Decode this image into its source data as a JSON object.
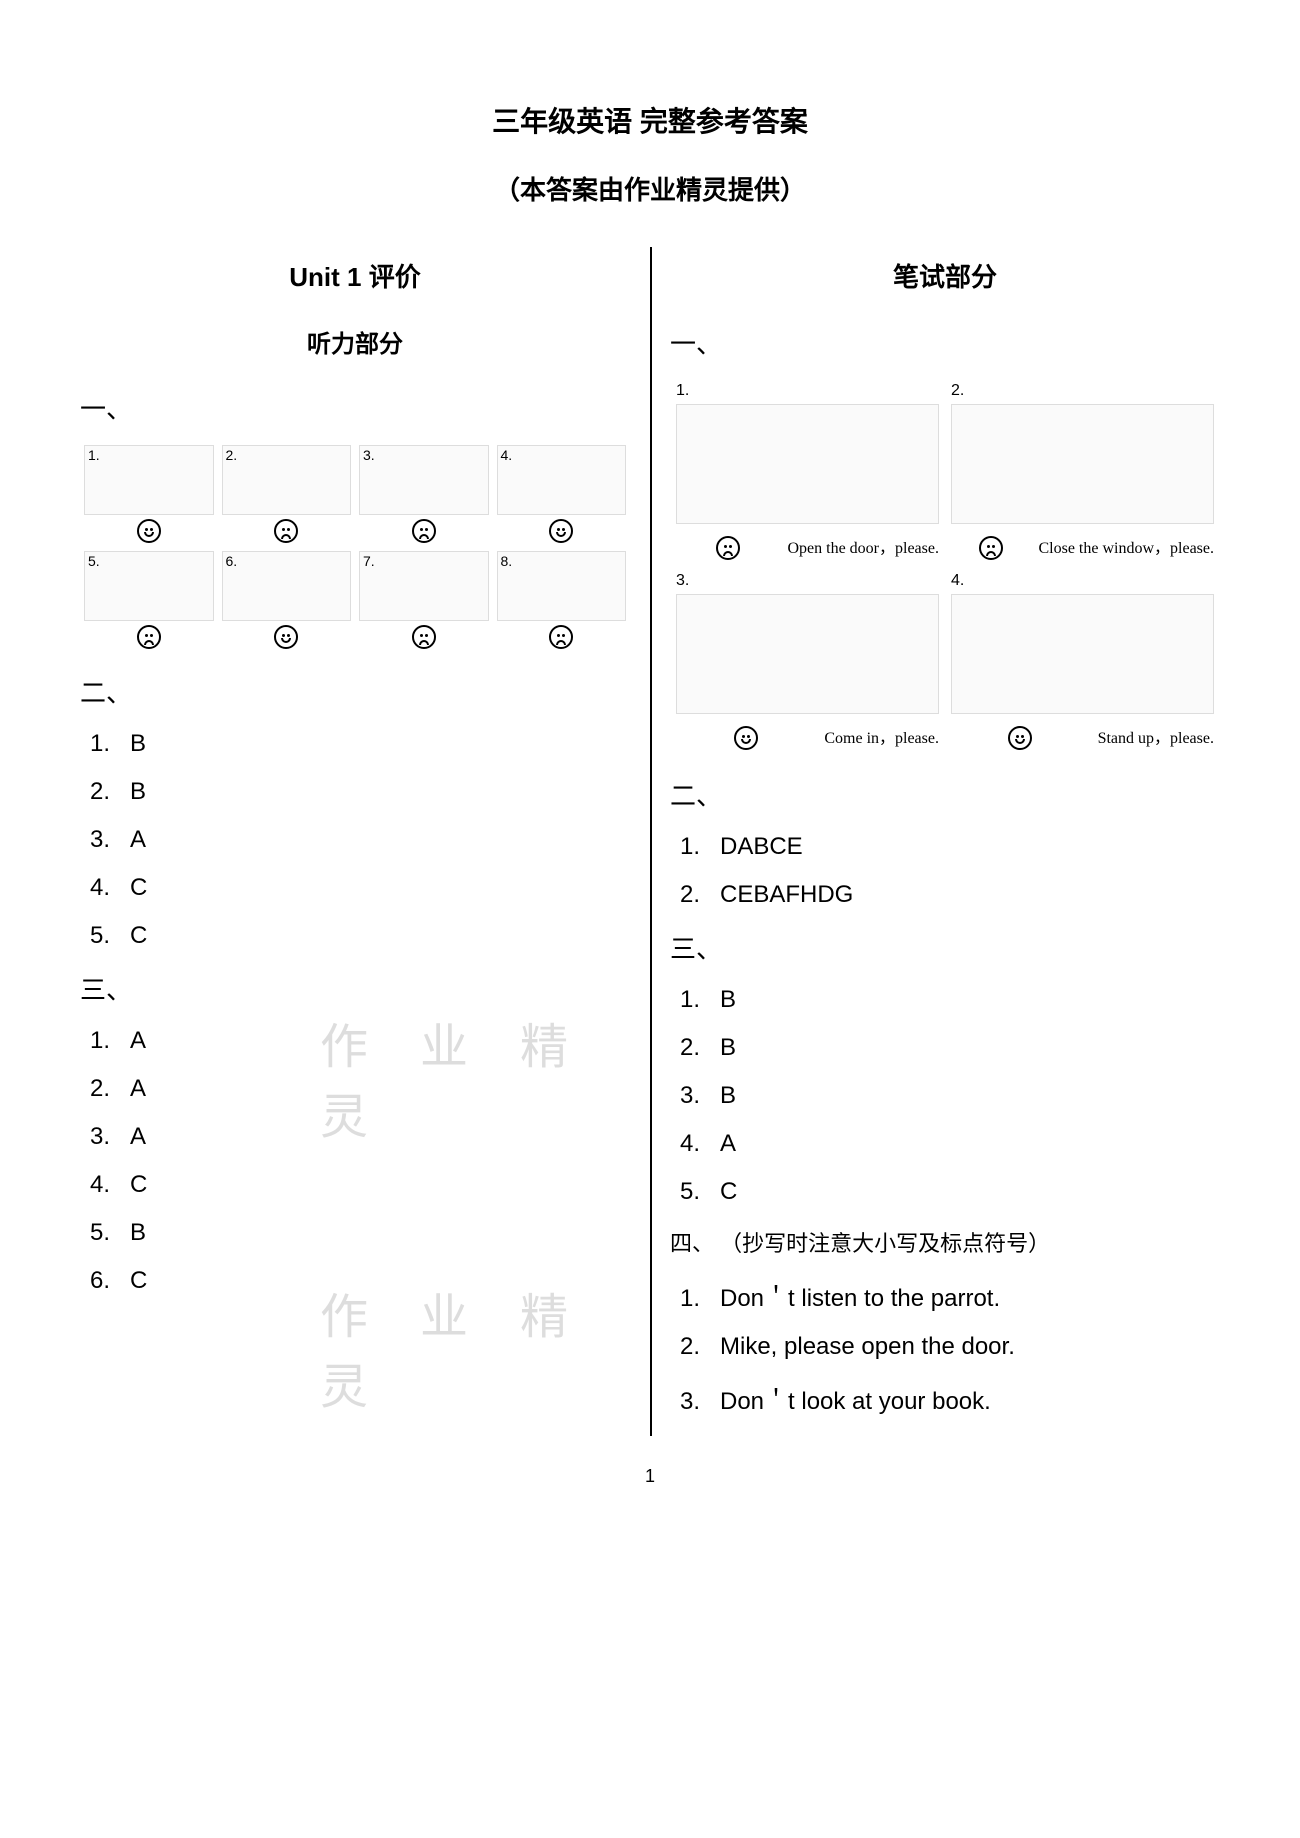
{
  "header": {
    "title": "三年级英语  完整参考答案",
    "subtitle": "（本答案由作业精灵提供）"
  },
  "watermark": "作 业 精 灵",
  "page_number": "1",
  "left": {
    "unit_heading": "Unit 1  评价",
    "listening_heading": "听力部分",
    "part1_label": "一、",
    "grid": [
      {
        "idx": "1.",
        "mood": "happy"
      },
      {
        "idx": "2.",
        "mood": "sad"
      },
      {
        "idx": "3.",
        "mood": "sad"
      },
      {
        "idx": "4.",
        "mood": "happy"
      },
      {
        "idx": "5.",
        "mood": "sad"
      },
      {
        "idx": "6.",
        "mood": "happy"
      },
      {
        "idx": "7.",
        "mood": "sad"
      },
      {
        "idx": "8.",
        "mood": "sad"
      }
    ],
    "part2_label": "二、",
    "part2_answers": [
      {
        "n": "1.",
        "v": "B"
      },
      {
        "n": "2.",
        "v": "B"
      },
      {
        "n": "3.",
        "v": "A"
      },
      {
        "n": "4.",
        "v": "C"
      },
      {
        "n": "5.",
        "v": "C"
      }
    ],
    "part3_label": "三、",
    "part3_answers": [
      {
        "n": "1.",
        "v": "A"
      },
      {
        "n": "2.",
        "v": "A"
      },
      {
        "n": "3.",
        "v": "A"
      },
      {
        "n": "4.",
        "v": "C"
      },
      {
        "n": "5.",
        "v": "B"
      },
      {
        "n": "6.",
        "v": "C"
      }
    ]
  },
  "right": {
    "written_heading": "笔试部分",
    "part1_label": "一、",
    "part1_items": [
      {
        "idx": "1.",
        "mood": "sad",
        "caption": "Open the door，please."
      },
      {
        "idx": "2.",
        "mood": "sad",
        "caption": "Close the window，please."
      },
      {
        "idx": "3.",
        "mood": "happy",
        "caption": "Come in，please."
      },
      {
        "idx": "4.",
        "mood": "happy",
        "caption": "Stand up，please."
      }
    ],
    "part2_label": "二、",
    "part2_answers": [
      {
        "n": "1.",
        "v": "DABCE"
      },
      {
        "n": "2.",
        "v": "CEBAFHDG"
      }
    ],
    "part3_label": "三、",
    "part3_answers": [
      {
        "n": "1.",
        "v": "B"
      },
      {
        "n": "2.",
        "v": "B"
      },
      {
        "n": "3.",
        "v": "B"
      },
      {
        "n": "4.",
        "v": "A"
      },
      {
        "n": "5.",
        "v": "C"
      }
    ],
    "part4_label": "四、",
    "part4_note": "（抄写时注意大小写及标点符号）",
    "part4_answers": [
      {
        "n": "1.",
        "v": "Don＇t listen to the parrot."
      },
      {
        "n": "2.",
        "v": "Mike, please open the door."
      },
      {
        "n": "3.",
        "v": "Don＇t look at your book."
      }
    ]
  }
}
